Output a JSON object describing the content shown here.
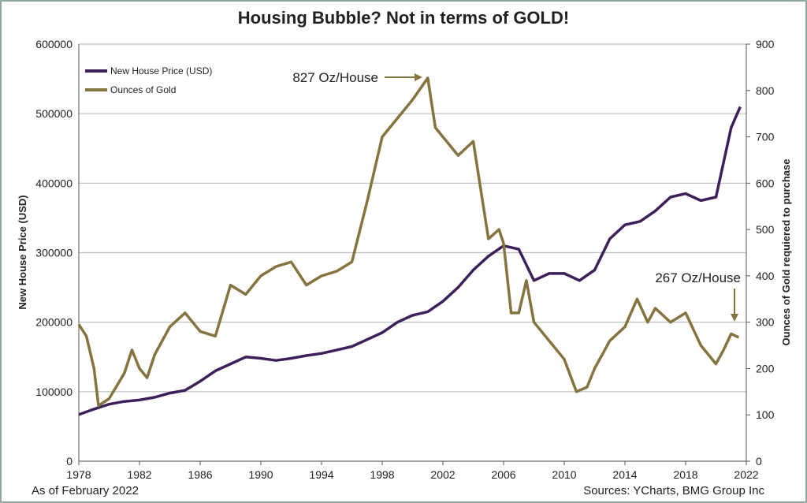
{
  "chart_data": {
    "type": "line",
    "title": "Housing Bubble?  Not in terms of GOLD!",
    "y_label": "New House Price (USD)",
    "y2_label": "Ounces of Gold requiered to purchase",
    "footer_left": "As of February 2022",
    "footer_right": "Sources: YCharts, BMG Group Inc",
    "annotations": [
      "827 Oz/House",
      "267 Oz/House"
    ],
    "xlim": [
      1978,
      2022
    ],
    "xticks": [
      1978,
      1982,
      1986,
      1990,
      1994,
      1998,
      2002,
      2006,
      2010,
      2014,
      2018,
      2022
    ],
    "ylim": [
      0,
      600000
    ],
    "yticks": [
      0,
      100000,
      200000,
      300000,
      400000,
      500000,
      600000
    ],
    "y2lim": [
      0,
      900
    ],
    "y2ticks": [
      0,
      100,
      200,
      300,
      400,
      500,
      600,
      700,
      800,
      900
    ],
    "grid": true,
    "legend": "upper left",
    "series": [
      {
        "name": "New House Price (USD)",
        "color": "#3d1f5a",
        "x": [
          1978,
          1979,
          1980,
          1981,
          1982,
          1983,
          1984,
          1985,
          1986,
          1987,
          1988,
          1989,
          1990,
          1991,
          1992,
          1993,
          1994,
          1995,
          1996,
          1997,
          1998,
          1999,
          2000,
          2001,
          2002,
          2003,
          2004,
          2005,
          2006,
          2007,
          2008,
          2009,
          2010,
          2011,
          2012,
          2013,
          2014,
          2015,
          2016,
          2017,
          2018,
          2019,
          2020,
          2021,
          2021.6
        ],
        "values": [
          67000,
          75000,
          82000,
          86000,
          88000,
          92000,
          98000,
          102000,
          115000,
          130000,
          140000,
          150000,
          148000,
          145000,
          148000,
          152000,
          155000,
          160000,
          165000,
          175000,
          185000,
          200000,
          210000,
          215000,
          230000,
          250000,
          275000,
          295000,
          310000,
          305000,
          260000,
          270000,
          270000,
          260000,
          275000,
          320000,
          340000,
          345000,
          360000,
          380000,
          385000,
          375000,
          380000,
          480000,
          510000
        ]
      },
      {
        "name": "Ounces of Gold",
        "color": "#857340",
        "axis": "y2",
        "x": [
          1978,
          1978.5,
          1979,
          1979.3,
          1980,
          1981,
          1981.5,
          1982,
          1982.5,
          1983,
          1984,
          1985,
          1986,
          1987,
          1988,
          1989,
          1990,
          1991,
          1992,
          1993,
          1994,
          1995,
          1996,
          1997,
          1998,
          1999,
          2000,
          2001,
          2001.5,
          2002,
          2003,
          2004,
          2005,
          2005.7,
          2006,
          2006.5,
          2007,
          2007.5,
          2008,
          2009,
          2010,
          2010.8,
          2011.5,
          2012,
          2013,
          2014,
          2014.8,
          2015.5,
          2016,
          2017,
          2018,
          2019,
          2020,
          2020.5,
          2021,
          2021.5
        ],
        "values": [
          295,
          270,
          200,
          120,
          135,
          190,
          240,
          200,
          180,
          230,
          290,
          320,
          280,
          270,
          380,
          360,
          400,
          420,
          430,
          380,
          400,
          410,
          430,
          560,
          700,
          740,
          780,
          827,
          720,
          700,
          660,
          690,
          480,
          500,
          470,
          320,
          320,
          390,
          300,
          260,
          220,
          150,
          160,
          200,
          260,
          290,
          350,
          300,
          330,
          300,
          320,
          250,
          210,
          240,
          275,
          267
        ]
      }
    ]
  }
}
